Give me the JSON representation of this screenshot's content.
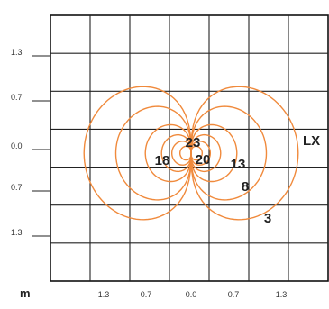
{
  "chart_data": {
    "type": "contour",
    "unit_label": "m",
    "series_label": "LX",
    "x_ticks": [
      "1.3",
      "0.7",
      "0.0",
      "0.7",
      "1.3"
    ],
    "y_ticks": [
      "1.3",
      "0.7",
      "0.0",
      "0.7",
      "1.3"
    ],
    "x_range": [
      -2.0,
      2.0
    ],
    "y_range": [
      -2.0,
      2.0
    ],
    "grid": true,
    "contour_levels": [
      3,
      8,
      13,
      18,
      20,
      23
    ],
    "contour_color": "#f08a3c"
  }
}
